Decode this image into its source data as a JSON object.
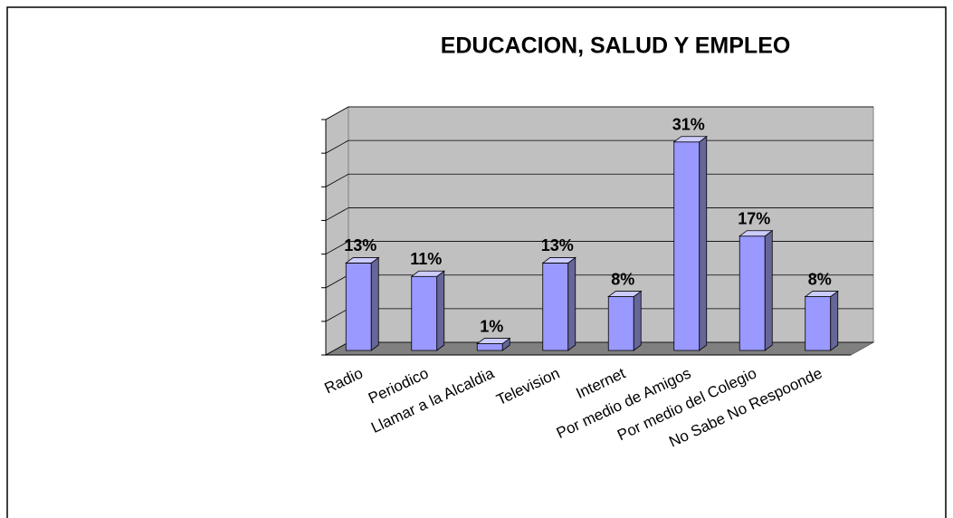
{
  "chart_data": {
    "type": "bar3d",
    "title": "EDUCACION, SALUD Y EMPLEO",
    "categories": [
      "Radio",
      "Periodico",
      "Llamar a la Alcaldia",
      "Television",
      "Internet",
      "Por medio de Amigos",
      "Por medio del Colegio",
      "No Sabe No Respoonde"
    ],
    "values": [
      13,
      11,
      1,
      13,
      8,
      31,
      17,
      8
    ],
    "value_labels": [
      "13%",
      "11%",
      "1%",
      "13%",
      "8%",
      "31%",
      "17%",
      "8%"
    ],
    "color": "#9999ff",
    "ylim": [
      0,
      35
    ],
    "yticks": [
      0,
      5,
      10,
      15,
      20,
      25,
      30,
      35
    ],
    "grid": true
  }
}
